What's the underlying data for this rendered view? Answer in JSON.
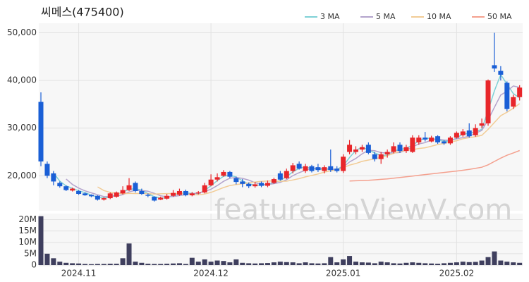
{
  "chart_data": {
    "type": "candlestick",
    "title": "씨메스(475400)",
    "watermark": "feature.enViewV.com",
    "categories": [
      null,
      null,
      null,
      null,
      null,
      null,
      "2024.11",
      null,
      null,
      null,
      null,
      null,
      null,
      null,
      null,
      null,
      null,
      null,
      null,
      null,
      null,
      null,
      null,
      null,
      null,
      null,
      null,
      "2024.12",
      null,
      null,
      null,
      null,
      null,
      null,
      null,
      null,
      null,
      null,
      null,
      null,
      null,
      null,
      null,
      null,
      null,
      null,
      null,
      null,
      "2025.01",
      null,
      null,
      null,
      null,
      null,
      null,
      null,
      null,
      null,
      null,
      null,
      null,
      null,
      null,
      null,
      null,
      null,
      "2025.02",
      null,
      null,
      null,
      null,
      null,
      null,
      null,
      null,
      null,
      null
    ],
    "candles": {
      "up_color": "#e8262a",
      "down_color": "#1a5fd6",
      "open": [
        35500,
        22500,
        20500,
        18500,
        17800,
        16900,
        16800,
        16300,
        16000,
        15800,
        15000,
        15300,
        15600,
        16300,
        17000,
        18500,
        16800,
        16000,
        15600,
        15000,
        15200,
        15800,
        16000,
        16800,
        15900,
        16300,
        16500,
        18000,
        19200,
        20000,
        20800,
        19500,
        18800,
        18300,
        17800,
        18500,
        17900,
        18500,
        20500,
        19500,
        21000,
        22500,
        21000,
        22000,
        21800,
        21000,
        22000,
        21500,
        21000,
        25000,
        25000,
        25500,
        26500,
        24500,
        23500,
        24500,
        25000,
        26500,
        25200,
        25000,
        27000,
        28000,
        27200,
        28300,
        27200,
        26800,
        28000,
        28500,
        29500,
        28500,
        30500,
        31000,
        43200,
        42000,
        39500,
        34500,
        36500
      ],
      "high": [
        37500,
        23000,
        21000,
        18800,
        18000,
        17500,
        17000,
        16500,
        16100,
        15900,
        15500,
        16500,
        16700,
        17800,
        19500,
        18800,
        17300,
        16300,
        15700,
        15600,
        16200,
        17000,
        17300,
        17100,
        16600,
        16800,
        18500,
        20300,
        20500,
        21200,
        21000,
        19800,
        19300,
        18600,
        18700,
        18800,
        19000,
        19600,
        21000,
        21500,
        22700,
        23000,
        22500,
        22300,
        22500,
        22200,
        25500,
        22000,
        24500,
        27500,
        26200,
        26500,
        27000,
        25000,
        25000,
        25500,
        27000,
        27000,
        26500,
        28500,
        28500,
        29200,
        28400,
        28500,
        27500,
        28300,
        29300,
        29800,
        31000,
        30800,
        32000,
        40200,
        50000,
        43000,
        39800,
        37000,
        39000
      ],
      "low": [
        22000,
        19500,
        18000,
        17500,
        16800,
        16700,
        16000,
        15800,
        15500,
        14800,
        14800,
        15100,
        15400,
        16100,
        16800,
        16500,
        16000,
        15500,
        14600,
        14900,
        15000,
        15600,
        15800,
        15700,
        15700,
        16100,
        16300,
        17800,
        18800,
        19800,
        19500,
        18200,
        17600,
        17400,
        17500,
        17600,
        17600,
        18300,
        19000,
        19300,
        20500,
        21300,
        20600,
        20700,
        20800,
        20500,
        20800,
        20700,
        20600,
        24500,
        24500,
        25000,
        24500,
        23000,
        22500,
        23800,
        24700,
        24800,
        24800,
        24800,
        26500,
        27200,
        27000,
        26700,
        26500,
        26500,
        27800,
        28200,
        28000,
        28200,
        30000,
        30500,
        41800,
        40000,
        33500,
        34000,
        35800
      ],
      "close": [
        23000,
        20000,
        18800,
        17800,
        17000,
        17300,
        16200,
        15900,
        15700,
        15000,
        15300,
        16300,
        16500,
        17000,
        18000,
        16800,
        16200,
        15800,
        14800,
        15400,
        15800,
        16400,
        16800,
        15900,
        16300,
        16500,
        18000,
        19200,
        19700,
        20800,
        19800,
        18700,
        18300,
        17800,
        18200,
        17900,
        18500,
        19300,
        19200,
        21000,
        22200,
        21500,
        22000,
        21000,
        21200,
        21800,
        21200,
        21000,
        24000,
        26500,
        25500,
        26000,
        24800,
        23500,
        24500,
        25000,
        26200,
        25200,
        26000,
        28000,
        28000,
        27600,
        28000,
        27000,
        26800,
        28000,
        29000,
        29300,
        28300,
        30000,
        31000,
        40000,
        42500,
        41200,
        34000,
        36500,
        38500
      ]
    },
    "ma": [
      {
        "name": "3 MA",
        "color": "#7fd1d6",
        "values": [
          null,
          null,
          20600,
          18867,
          17867,
          17367,
          16833,
          16467,
          15933,
          15533,
          15333,
          15533,
          16033,
          16600,
          17167,
          17267,
          17000,
          16267,
          15600,
          15333,
          15333,
          15867,
          16333,
          16367,
          16333,
          16233,
          16933,
          17900,
          18967,
          19900,
          20100,
          19767,
          18933,
          18267,
          18100,
          17967,
          18200,
          18567,
          19000,
          19833,
          20800,
          21567,
          21900,
          21500,
          21400,
          21333,
          21400,
          21333,
          22067,
          23833,
          25333,
          26000,
          25433,
          24767,
          24267,
          24333,
          25233,
          25467,
          25800,
          26400,
          27333,
          27867,
          27867,
          27533,
          27267,
          27267,
          27933,
          28767,
          28867,
          29200,
          29767,
          33667,
          37833,
          41233,
          39233,
          37233,
          36333
        ]
      },
      {
        "name": "5 MA",
        "color": "#b3a3cc",
        "values": [
          null,
          null,
          null,
          null,
          19320,
          18180,
          17420,
          16840,
          16420,
          16020,
          15620,
          15640,
          15760,
          16020,
          16620,
          16920,
          16900,
          16760,
          16320,
          15800,
          15600,
          15640,
          15840,
          16060,
          16240,
          16380,
          16700,
          17180,
          17940,
          18840,
          19500,
          19640,
          19460,
          19080,
          18560,
          18180,
          18140,
          18340,
          18620,
          19180,
          20040,
          20640,
          21180,
          21540,
          21580,
          21500,
          21440,
          21240,
          21840,
          22900,
          23640,
          24600,
          25360,
          25260,
          24860,
          24760,
          24800,
          24880,
          25380,
          26080,
          26680,
          26960,
          27520,
          27720,
          27480,
          27480,
          27760,
          28020,
          28280,
          28920,
          29520,
          31720,
          34360,
          36940,
          37740,
          38840,
          38540
        ]
      },
      {
        "name": "10 MA",
        "color": "#f2cc96",
        "values": [
          null,
          null,
          null,
          null,
          null,
          null,
          null,
          null,
          null,
          17670,
          16900,
          16530,
          16300,
          16220,
          16320,
          16270,
          16270,
          16260,
          16170,
          16210,
          16260,
          16270,
          16300,
          16190,
          16020,
          15990,
          16170,
          16510,
          17000,
          17540,
          17940,
          18170,
          18320,
          18510,
          18700,
          18840,
          18890,
          18900,
          18850,
          18870,
          19110,
          19390,
          19760,
          20080,
          20380,
          20770,
          21040,
          21210,
          21690,
          22240,
          22570,
          23020,
          23300,
          23550,
          23880,
          24200,
          24700,
          25120,
          25320,
          25470,
          25720,
          25880,
          26200,
          26550,
          26780,
          27080,
          27360,
          27770,
          28000,
          28200,
          28500,
          29740,
          31190,
          32610,
          33330,
          34180,
          35130
        ]
      },
      {
        "name": "50 MA",
        "color": "#f4a08e",
        "values": [
          null,
          null,
          null,
          null,
          null,
          null,
          null,
          null,
          null,
          null,
          null,
          null,
          null,
          null,
          null,
          null,
          null,
          null,
          null,
          null,
          null,
          null,
          null,
          null,
          null,
          null,
          null,
          null,
          null,
          null,
          null,
          null,
          null,
          null,
          null,
          null,
          null,
          null,
          null,
          null,
          null,
          null,
          null,
          null,
          null,
          null,
          null,
          null,
          null,
          18900,
          18950,
          19000,
          19050,
          19150,
          19250,
          19350,
          19500,
          19650,
          19800,
          19950,
          20100,
          20250,
          20400,
          20550,
          20700,
          20850,
          21000,
          21150,
          21350,
          21550,
          21800,
          22300,
          23000,
          23700,
          24300,
          24800,
          25300
        ]
      }
    ],
    "ylim": [
      12800,
      51700
    ],
    "yticks": [
      {
        "value": 20000,
        "label": "20,000"
      },
      {
        "value": 30000,
        "label": "30,000"
      },
      {
        "value": 40000,
        "label": "40,000"
      },
      {
        "value": 50000,
        "label": "50,000"
      }
    ],
    "volume": {
      "color": "#3f3f5e",
      "values": [
        21500000,
        5000000,
        3000000,
        1500000,
        1000000,
        800000,
        700000,
        500000,
        400000,
        500000,
        500000,
        600000,
        600000,
        3000000,
        9500000,
        1500000,
        1000000,
        600000,
        500000,
        500000,
        600000,
        700000,
        800000,
        500000,
        3200000,
        1500000,
        2500000,
        1500000,
        2000000,
        1800000,
        1200000,
        2500000,
        1000000,
        800000,
        700000,
        800000,
        900000,
        1200000,
        1500000,
        1300000,
        1200000,
        800000,
        1200000,
        800000,
        700000,
        800000,
        3500000,
        1200000,
        2500000,
        4000000,
        1500000,
        1200000,
        1100000,
        800000,
        1500000,
        1200000,
        800000,
        700000,
        1000000,
        1200000,
        1000000,
        800000,
        700000,
        600000,
        800000,
        1000000,
        1200000,
        1500000,
        1300000,
        1400000,
        2000000,
        3500000,
        6000000,
        2000000,
        1500000,
        1200000,
        1000000
      ],
      "ylim": [
        0,
        22000000
      ],
      "yticks": [
        0,
        {
          "value": 5000000,
          "label": "5M"
        },
        {
          "value": 10000000,
          "label": "10M"
        },
        {
          "value": 15000000,
          "label": "15M"
        },
        {
          "value": 20000000,
          "label": "20M"
        }
      ]
    },
    "grid": true
  }
}
